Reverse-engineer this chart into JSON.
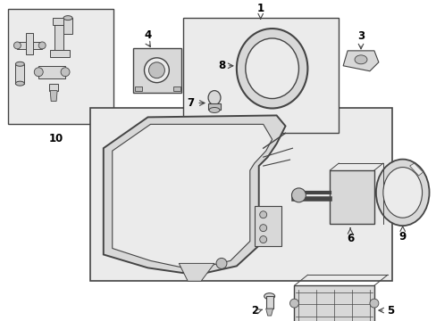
{
  "bg_color": "#ffffff",
  "line_color": "#444444",
  "fill_light": "#ebebeb",
  "fill_mid": "#d8d8d8",
  "fill_dark": "#c0c0c0",
  "font_size": 8.5
}
